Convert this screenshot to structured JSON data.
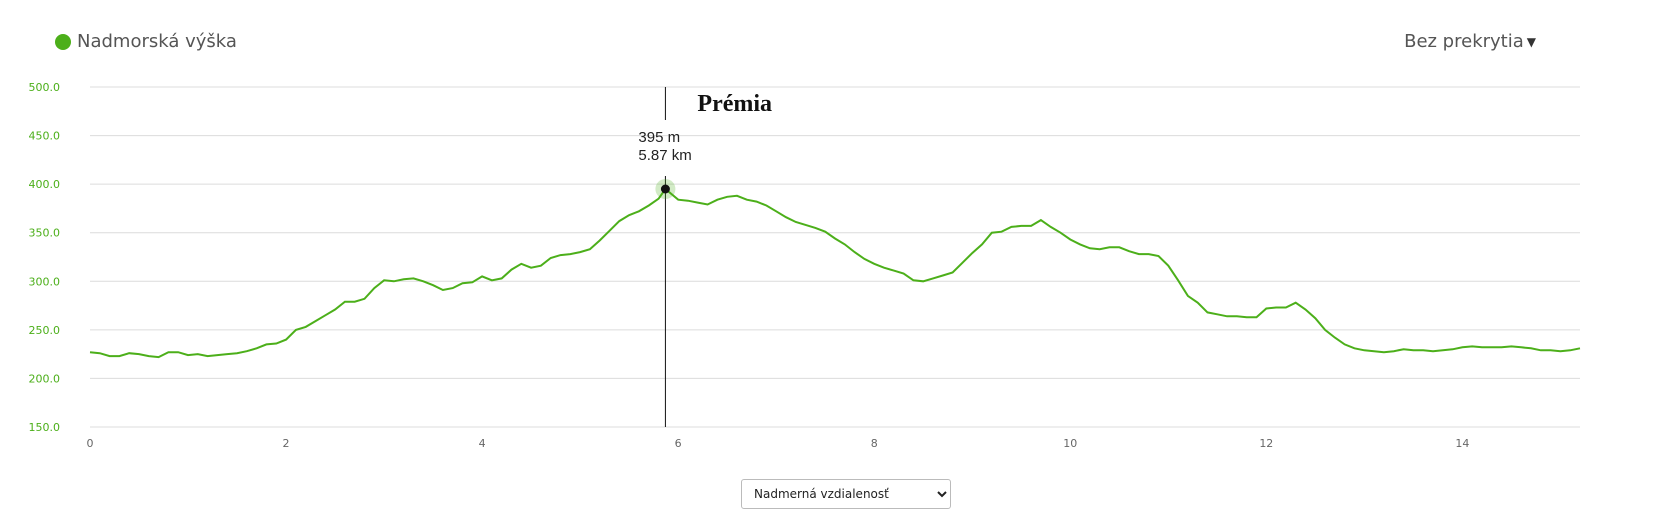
{
  "legend": {
    "label": "Nadmorská výška",
    "color": "#4caf1a"
  },
  "overlay_menu": {
    "label": "Bez prekrytia",
    "caret_icon": "caret-down-icon"
  },
  "x_axis_select": {
    "selected": "Nadmerná vzdialenosť",
    "options": [
      "Nadmerná vzdialenosť"
    ]
  },
  "chart_data": {
    "type": "line",
    "ylim": [
      150,
      500
    ],
    "xlim": [
      0,
      15.2
    ],
    "y_ticks": [
      "500.0",
      "450.0",
      "400.0",
      "350.0",
      "300.0",
      "250.0",
      "200.0",
      "150.0"
    ],
    "x_ticks": [
      "0",
      "2",
      "4",
      "6",
      "8",
      "10",
      "12",
      "14"
    ],
    "grid": true,
    "series": [
      {
        "name": "Nadmorská výška",
        "color": "#4caf1a",
        "x": [
          0,
          0.1,
          0.2,
          0.3,
          0.4,
          0.5,
          0.6,
          0.7,
          0.8,
          0.9,
          1.0,
          1.1,
          1.2,
          1.3,
          1.4,
          1.5,
          1.6,
          1.7,
          1.8,
          1.9,
          2.0,
          2.1,
          2.2,
          2.3,
          2.4,
          2.5,
          2.6,
          2.7,
          2.8,
          2.9,
          3.0,
          3.1,
          3.2,
          3.3,
          3.4,
          3.5,
          3.6,
          3.7,
          3.8,
          3.9,
          4.0,
          4.1,
          4.2,
          4.3,
          4.4,
          4.5,
          4.6,
          4.7,
          4.8,
          4.9,
          5.0,
          5.1,
          5.2,
          5.3,
          5.4,
          5.5,
          5.6,
          5.7,
          5.8,
          5.87,
          6.0,
          6.1,
          6.2,
          6.3,
          6.4,
          6.5,
          6.6,
          6.7,
          6.8,
          6.9,
          7.0,
          7.1,
          7.2,
          7.3,
          7.4,
          7.5,
          7.6,
          7.7,
          7.8,
          7.9,
          8.0,
          8.1,
          8.2,
          8.3,
          8.4,
          8.5,
          8.6,
          8.7,
          8.8,
          8.9,
          9.0,
          9.1,
          9.2,
          9.3,
          9.4,
          9.5,
          9.6,
          9.7,
          9.8,
          9.9,
          10.0,
          10.1,
          10.2,
          10.3,
          10.4,
          10.5,
          10.6,
          10.7,
          10.8,
          10.9,
          11.0,
          11.1,
          11.2,
          11.3,
          11.4,
          11.5,
          11.6,
          11.7,
          11.8,
          11.9,
          12.0,
          12.1,
          12.2,
          12.3,
          12.4,
          12.5,
          12.6,
          12.7,
          12.8,
          12.9,
          13.0,
          13.1,
          13.2,
          13.3,
          13.4,
          13.5,
          13.6,
          13.7,
          13.8,
          13.9,
          14.0,
          14.1,
          14.2,
          14.3,
          14.4,
          14.5,
          14.6,
          14.7,
          14.8,
          14.9,
          15.0,
          15.1,
          15.2
        ],
        "y": [
          227,
          226,
          223,
          223,
          226,
          225,
          223,
          222,
          227,
          227,
          224,
          225,
          223,
          224,
          225,
          226,
          228,
          231,
          235,
          236,
          240,
          250,
          253,
          259,
          265,
          271,
          279,
          279,
          282,
          293,
          301,
          300,
          302,
          303,
          300,
          296,
          291,
          293,
          298,
          299,
          305,
          301,
          303,
          312,
          318,
          314,
          316,
          324,
          327,
          328,
          330,
          333,
          342,
          352,
          362,
          368,
          372,
          378,
          385,
          395,
          384,
          383,
          381,
          379,
          384,
          387,
          388,
          384,
          382,
          378,
          372,
          366,
          361,
          358,
          355,
          351,
          344,
          338,
          330,
          323,
          318,
          314,
          311,
          308,
          301,
          300,
          303,
          306,
          309,
          319,
          329,
          338,
          350,
          351,
          356,
          357,
          357,
          363,
          356,
          350,
          343,
          338,
          334,
          333,
          335,
          335,
          331,
          328,
          328,
          326,
          316,
          301,
          285,
          278,
          268,
          266,
          264,
          264,
          263,
          263,
          272,
          273,
          273,
          278,
          271,
          262,
          250,
          242,
          235,
          231,
          229,
          228,
          227,
          228,
          230,
          229,
          229,
          228,
          229,
          230,
          232,
          233,
          232,
          232,
          232,
          233,
          232,
          231,
          229,
          229,
          228,
          229,
          231
        ]
      }
    ],
    "marker": {
      "x": 5.87,
      "y": 395,
      "elevation_label": "395 m",
      "distance_label": "5.87 km"
    },
    "annotation": "Prémia"
  }
}
